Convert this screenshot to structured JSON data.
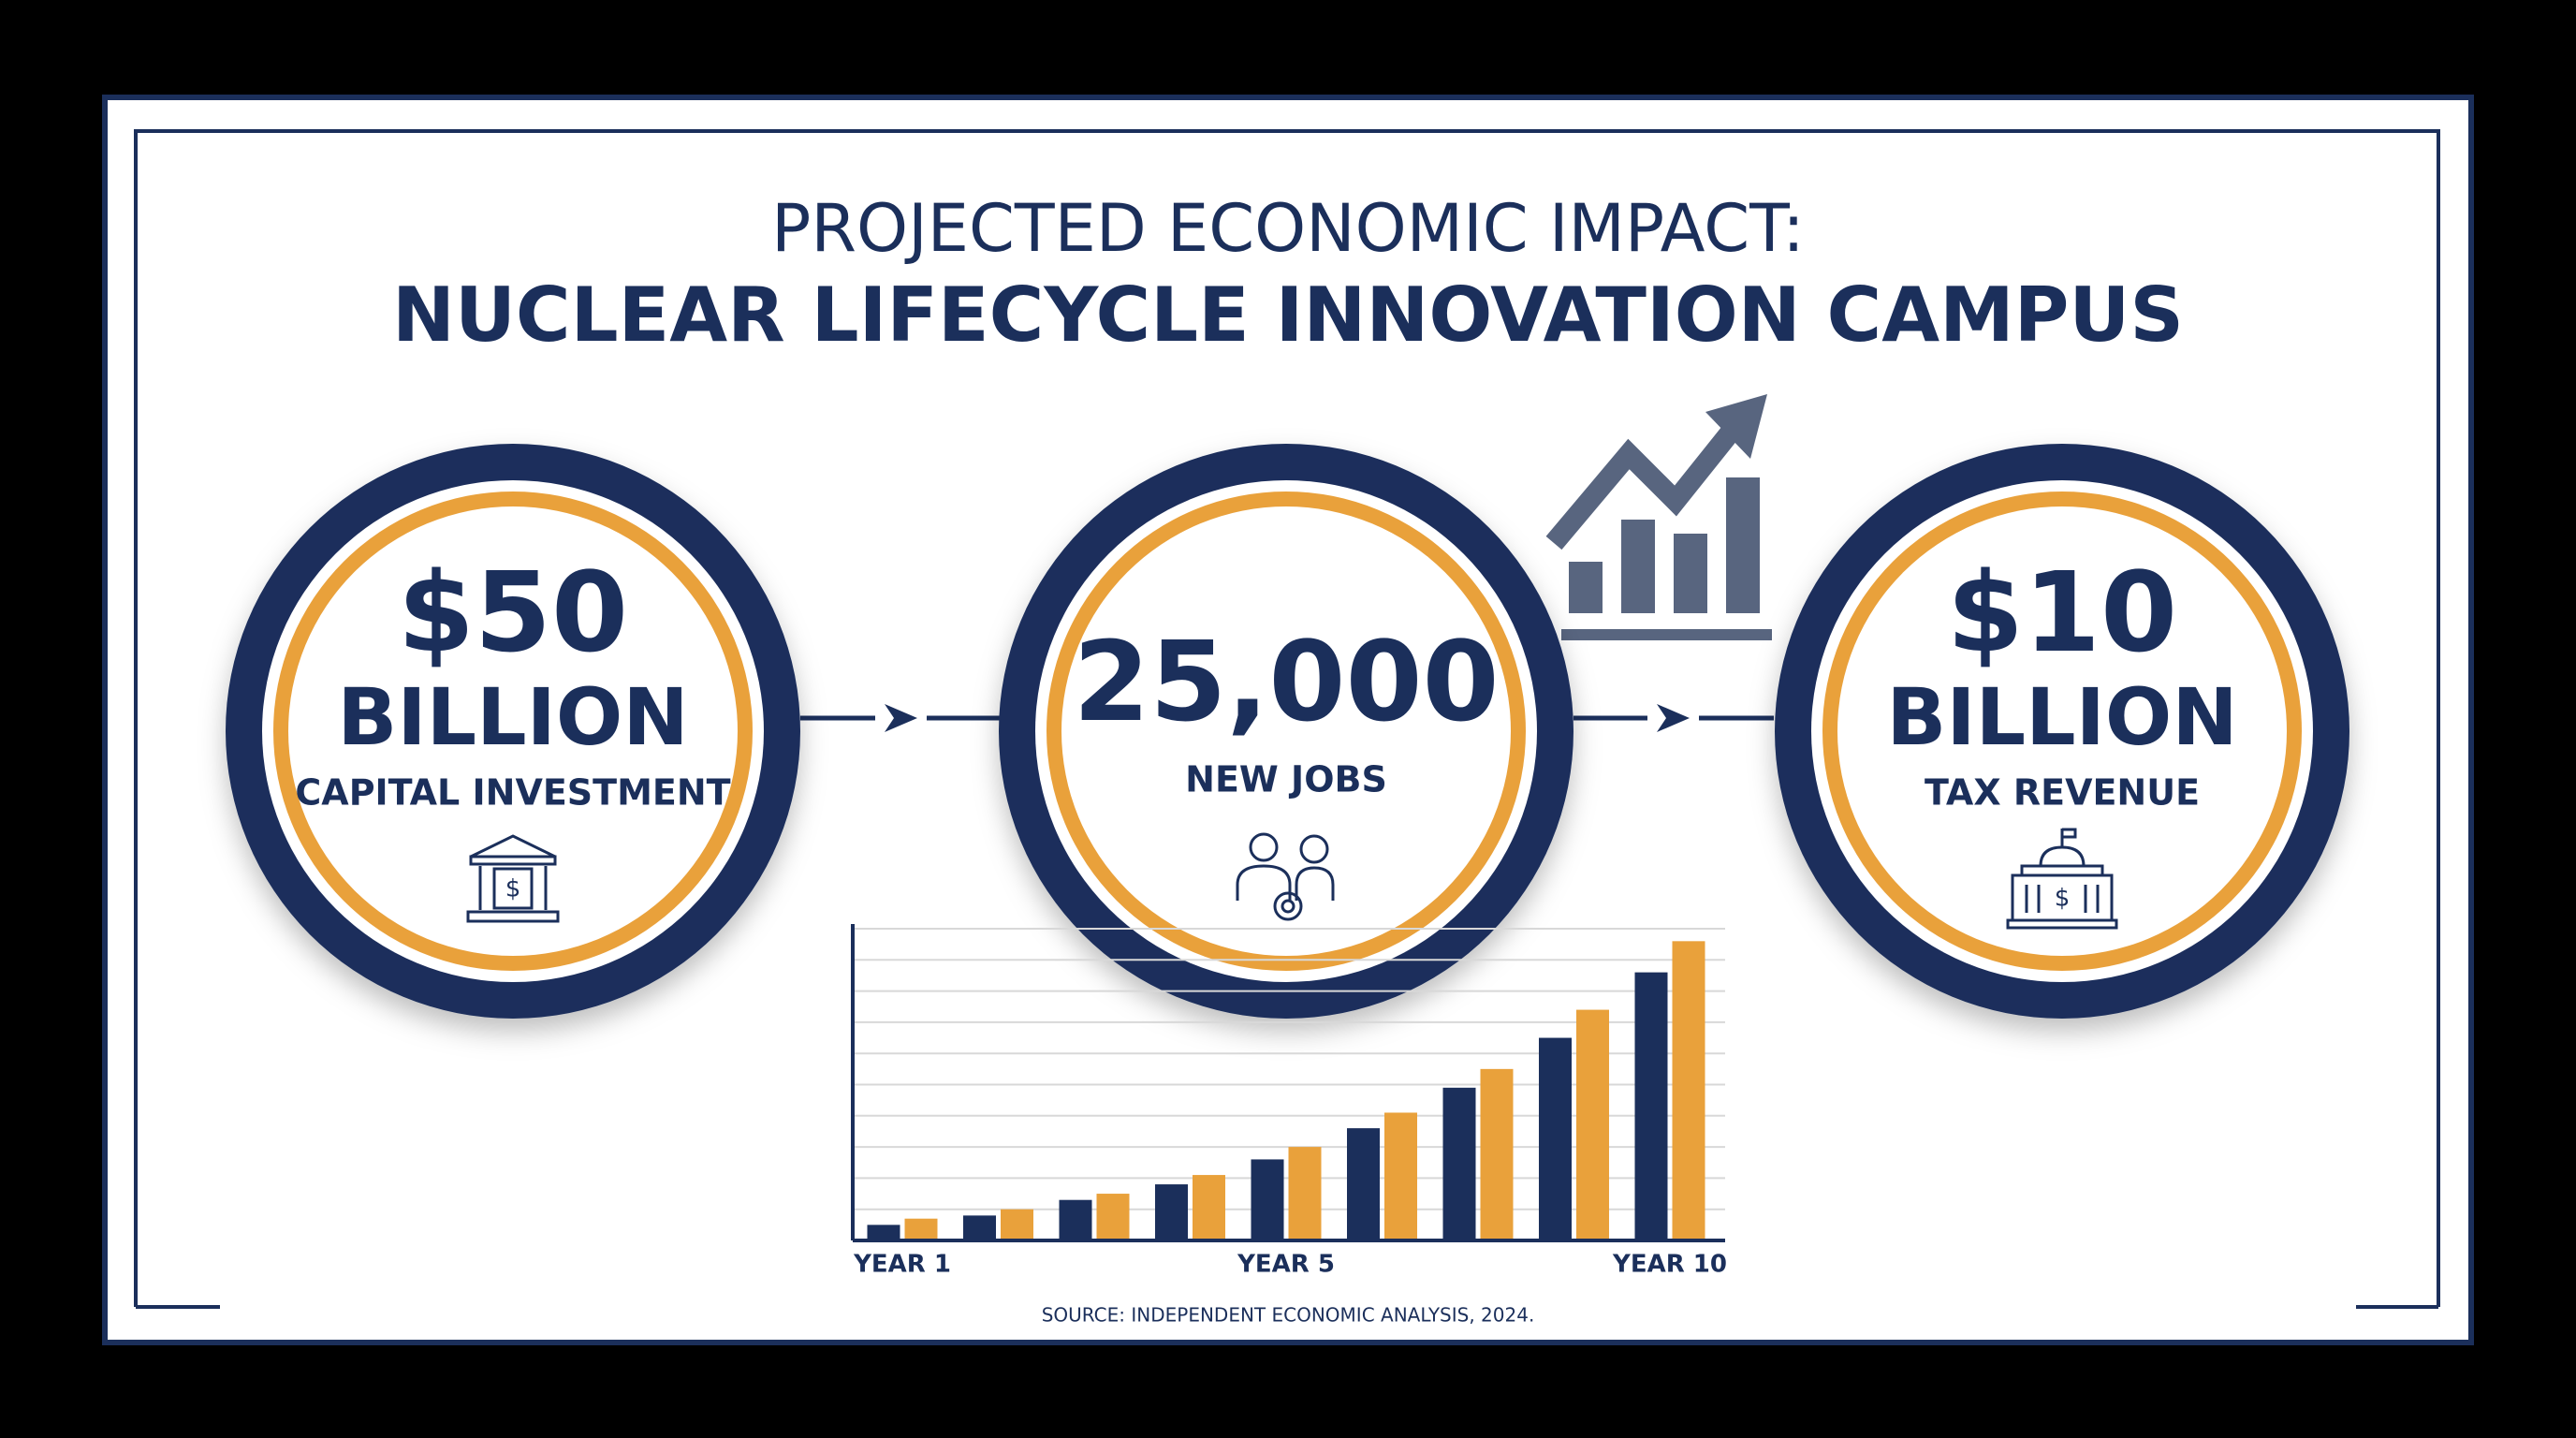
{
  "header": {
    "title_line1": "PROJECTED ECONOMIC IMPACT:",
    "title_line2": "NUCLEAR LIFECYCLE INNOVATION CAMPUS"
  },
  "stats": [
    {
      "value": "$50",
      "unit": "BILLION",
      "label": "CAPITAL INVESTMENT"
    },
    {
      "value": "25,000",
      "label": "NEW JOBS"
    },
    {
      "value": "$10",
      "unit": "BILLION",
      "label": "TAX REVENUE"
    }
  ],
  "chart_data": {
    "type": "bar",
    "categories": [
      "YEAR 1",
      null,
      null,
      null,
      "YEAR 5",
      null,
      null,
      null,
      "YEAR 10"
    ],
    "series": [
      {
        "color": "#1b2f5b",
        "values": [
          5,
          8,
          13,
          18,
          26,
          36,
          49,
          65,
          86
        ]
      },
      {
        "color": "#e9a13b",
        "values": [
          7,
          10,
          15,
          21,
          30,
          41,
          55,
          74,
          96
        ]
      }
    ],
    "ylim": [
      0,
      100
    ],
    "yticks": [
      10,
      20,
      30,
      40,
      50,
      60,
      70,
      80,
      90,
      100
    ],
    "grid": true
  },
  "footer": {
    "source": "SOURCE: INDEPENDENT ECONOMIC ANALYSIS, 2024."
  }
}
